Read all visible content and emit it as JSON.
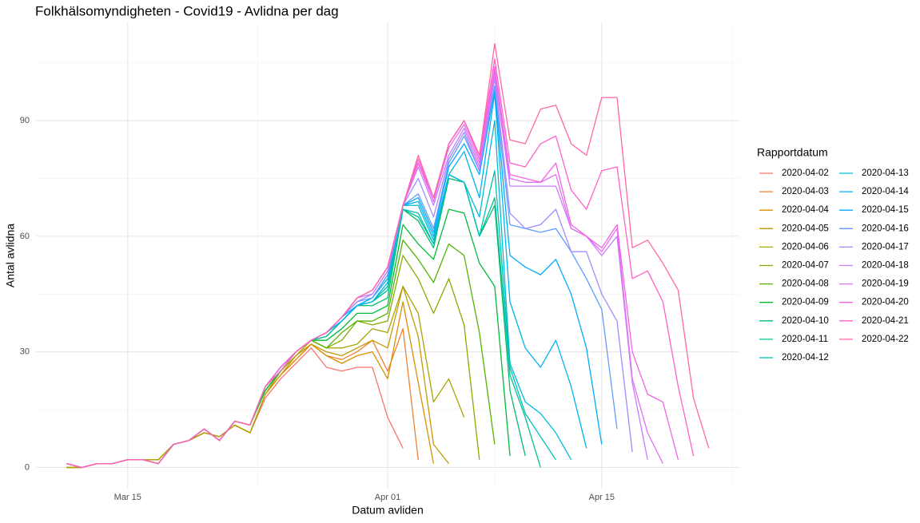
{
  "chart_data": {
    "type": "line",
    "title": "Folkhälsomyndigheten - Covid19 - Avlidna per dag",
    "x_label": "Datum avliden",
    "y_label": "Antal avlidna",
    "legend_title": "Rapportdatum",
    "x": [
      "2020-03-11",
      "2020-03-12",
      "2020-03-13",
      "2020-03-14",
      "2020-03-15",
      "2020-03-16",
      "2020-03-17",
      "2020-03-18",
      "2020-03-19",
      "2020-03-20",
      "2020-03-21",
      "2020-03-22",
      "2020-03-23",
      "2020-03-24",
      "2020-03-25",
      "2020-03-26",
      "2020-03-27",
      "2020-03-28",
      "2020-03-29",
      "2020-03-30",
      "2020-03-31",
      "2020-04-01",
      "2020-04-02",
      "2020-04-03",
      "2020-04-04",
      "2020-04-05",
      "2020-04-06",
      "2020-04-07",
      "2020-04-08",
      "2020-04-09",
      "2020-04-10",
      "2020-04-11",
      "2020-04-12",
      "2020-04-13",
      "2020-04-14",
      "2020-04-15",
      "2020-04-16",
      "2020-04-17",
      "2020-04-18",
      "2020-04-19",
      "2020-04-20",
      "2020-04-21",
      "2020-04-22"
    ],
    "xlim": [
      "2020-03-09",
      "2020-04-24"
    ],
    "xticks": [
      {
        "value": "2020-03-15",
        "label": "Mar 15"
      },
      {
        "value": "2020-04-01",
        "label": "Apr 01"
      },
      {
        "value": "2020-04-15",
        "label": "Apr 15"
      }
    ],
    "minor_xticks": [
      "2020-03-23T12:00",
      "2020-04-08T00:00",
      "2020-04-23T12:00"
    ],
    "ylim": [
      -5.5,
      115.5
    ],
    "yticks": [
      0,
      30,
      60,
      90
    ],
    "minor_yticks": [
      15,
      45,
      75,
      105
    ],
    "grid": true,
    "legend": "right",
    "series": [
      {
        "name": "2020-04-02",
        "color": "#F8766D",
        "values": [
          0,
          0,
          1,
          1,
          2,
          2,
          2,
          6,
          7,
          9,
          8,
          11,
          9,
          18,
          23,
          27,
          31,
          26,
          25,
          26,
          26,
          13,
          5,
          null,
          null,
          null,
          null,
          null,
          null,
          null,
          null,
          null,
          null,
          null,
          null,
          null,
          null,
          null,
          null,
          null,
          null,
          null,
          null
        ]
      },
      {
        "name": "2020-04-03",
        "color": "#EB8335",
        "values": [
          0,
          0,
          1,
          1,
          2,
          2,
          2,
          6,
          7,
          9,
          8,
          11,
          9,
          19,
          24,
          28,
          32,
          29,
          28,
          30,
          33,
          25,
          36,
          2,
          null,
          null,
          null,
          null,
          null,
          null,
          null,
          null,
          null,
          null,
          null,
          null,
          null,
          null,
          null,
          null,
          null,
          null,
          null
        ]
      },
      {
        "name": "2020-04-04",
        "color": "#DA8F00",
        "values": [
          0,
          0,
          1,
          1,
          2,
          2,
          2,
          6,
          7,
          9,
          8,
          11,
          9,
          19,
          24,
          28,
          32,
          29,
          27,
          29,
          30,
          23,
          43,
          22,
          1,
          null,
          null,
          null,
          null,
          null,
          null,
          null,
          null,
          null,
          null,
          null,
          null,
          null,
          null,
          null,
          null,
          null,
          null
        ]
      },
      {
        "name": "2020-04-05",
        "color": "#C49A00",
        "values": [
          0,
          0,
          1,
          1,
          2,
          2,
          2,
          6,
          7,
          9,
          8,
          11,
          9,
          19,
          24,
          29,
          32,
          30,
          29,
          31,
          33,
          31,
          47,
          34,
          6,
          1,
          null,
          null,
          null,
          null,
          null,
          null,
          null,
          null,
          null,
          null,
          null,
          null,
          null,
          null,
          null,
          null,
          null
        ]
      },
      {
        "name": "2020-04-06",
        "color": "#A9A400",
        "values": [
          0,
          0,
          1,
          1,
          2,
          2,
          2,
          6,
          7,
          9,
          8,
          11,
          9,
          19,
          25,
          29,
          33,
          31,
          31,
          32,
          36,
          35,
          47,
          40,
          17,
          23,
          13,
          null,
          null,
          null,
          null,
          null,
          null,
          null,
          null,
          null,
          null,
          null,
          null,
          null,
          null,
          null,
          null
        ]
      },
      {
        "name": "2020-04-07",
        "color": "#86AC00",
        "values": [
          1,
          0,
          1,
          1,
          2,
          2,
          1,
          6,
          7,
          10,
          7,
          12,
          11,
          20,
          25,
          30,
          33,
          31,
          33,
          38,
          37,
          38,
          55,
          49,
          40,
          49,
          37,
          2,
          null,
          null,
          null,
          null,
          null,
          null,
          null,
          null,
          null,
          null,
          null,
          null,
          null,
          null,
          null
        ]
      },
      {
        "name": "2020-04-08",
        "color": "#53B400",
        "values": [
          1,
          0,
          1,
          1,
          2,
          2,
          1,
          6,
          7,
          10,
          7,
          12,
          11,
          20,
          25,
          30,
          33,
          31,
          35,
          38,
          38,
          40,
          59,
          54,
          48,
          58,
          55,
          35,
          6,
          null,
          null,
          null,
          null,
          null,
          null,
          null,
          null,
          null,
          null,
          null,
          null,
          null,
          null
        ]
      },
      {
        "name": "2020-04-09",
        "color": "#00BA38",
        "values": [
          1,
          0,
          1,
          1,
          2,
          2,
          1,
          6,
          7,
          10,
          7,
          12,
          11,
          20,
          25,
          30,
          33,
          33,
          36,
          40,
          40,
          42,
          63,
          58,
          54,
          67,
          66,
          53,
          47,
          3,
          null,
          null,
          null,
          null,
          null,
          null,
          null,
          null,
          null,
          null,
          null,
          null,
          null
        ]
      },
      {
        "name": "2020-04-10",
        "color": "#00BE6C",
        "values": [
          1,
          0,
          1,
          1,
          2,
          2,
          1,
          6,
          7,
          10,
          7,
          12,
          11,
          21,
          25,
          30,
          33,
          34,
          38,
          42,
          42,
          44,
          67,
          64,
          57,
          75,
          74,
          60,
          68,
          20,
          3,
          null,
          null,
          null,
          null,
          null,
          null,
          null,
          null,
          null,
          null,
          null,
          null
        ]
      },
      {
        "name": "2020-04-11",
        "color": "#00C094",
        "values": [
          1,
          0,
          1,
          1,
          2,
          2,
          1,
          6,
          7,
          10,
          7,
          12,
          11,
          21,
          25,
          30,
          33,
          34,
          38,
          42,
          43,
          46,
          67,
          65,
          58,
          76,
          74,
          60,
          70,
          24,
          13,
          0,
          null,
          null,
          null,
          null,
          null,
          null,
          null,
          null,
          null,
          null,
          null
        ]
      },
      {
        "name": "2020-04-12",
        "color": "#00C0B8",
        "values": [
          1,
          0,
          1,
          1,
          2,
          2,
          1,
          6,
          7,
          10,
          7,
          12,
          11,
          21,
          26,
          30,
          33,
          35,
          38,
          42,
          43,
          47,
          67,
          66,
          58,
          76,
          74,
          60,
          77,
          26,
          14,
          8,
          2,
          null,
          null,
          null,
          null,
          null,
          null,
          null,
          null,
          null,
          null
        ]
      },
      {
        "name": "2020-04-13",
        "color": "#00BCD8",
        "values": [
          1,
          0,
          1,
          1,
          2,
          2,
          1,
          6,
          7,
          10,
          7,
          12,
          11,
          21,
          26,
          30,
          33,
          35,
          38,
          42,
          43,
          48,
          68,
          68,
          59,
          76,
          74,
          65,
          90,
          27,
          17,
          14,
          9,
          2,
          null,
          null,
          null,
          null,
          null,
          null,
          null,
          null,
          null
        ]
      },
      {
        "name": "2020-04-14",
        "color": "#00B4F0",
        "values": [
          1,
          0,
          1,
          1,
          2,
          2,
          1,
          6,
          7,
          10,
          7,
          12,
          11,
          21,
          26,
          30,
          33,
          35,
          38,
          42,
          44,
          49,
          68,
          69,
          60,
          76,
          82,
          70,
          97,
          43,
          31,
          26,
          33,
          21,
          5,
          null,
          null,
          null,
          null,
          null,
          null,
          null,
          null
        ]
      },
      {
        "name": "2020-04-15",
        "color": "#00A9FF",
        "values": [
          1,
          0,
          1,
          1,
          2,
          2,
          1,
          6,
          7,
          10,
          7,
          12,
          11,
          21,
          26,
          30,
          33,
          35,
          39,
          42,
          44,
          50,
          68,
          70,
          61,
          78,
          84,
          76,
          98,
          55,
          52,
          50,
          54,
          45,
          31,
          6,
          null,
          null,
          null,
          null,
          null,
          null,
          null
        ]
      },
      {
        "name": "2020-04-16",
        "color": "#619CFF",
        "values": [
          1,
          0,
          1,
          1,
          2,
          2,
          1,
          6,
          7,
          10,
          7,
          12,
          11,
          21,
          26,
          30,
          33,
          35,
          39,
          43,
          44,
          50,
          68,
          71,
          62,
          79,
          86,
          77,
          99,
          63,
          62,
          61,
          62,
          56,
          49,
          41,
          10,
          null,
          null,
          null,
          null,
          null,
          null
        ]
      },
      {
        "name": "2020-04-17",
        "color": "#9F8CFF",
        "values": [
          1,
          0,
          1,
          1,
          2,
          2,
          1,
          6,
          7,
          10,
          7,
          12,
          11,
          21,
          26,
          30,
          33,
          35,
          39,
          43,
          45,
          51,
          68,
          75,
          65,
          80,
          87,
          77,
          101,
          66,
          62,
          63,
          67,
          56,
          56,
          45,
          38,
          4,
          null,
          null,
          null,
          null,
          null
        ]
      },
      {
        "name": "2020-04-18",
        "color": "#C77CFF",
        "values": [
          1,
          0,
          1,
          1,
          2,
          2,
          1,
          6,
          7,
          10,
          7,
          12,
          11,
          21,
          26,
          30,
          33,
          35,
          39,
          44,
          45,
          51,
          68,
          78,
          68,
          81,
          88,
          78,
          102,
          73,
          73,
          73,
          73,
          62,
          60,
          55,
          60,
          22,
          2,
          null,
          null,
          null,
          null
        ]
      },
      {
        "name": "2020-04-19",
        "color": "#E36EF6",
        "values": [
          1,
          0,
          1,
          1,
          2,
          2,
          1,
          6,
          7,
          10,
          7,
          12,
          11,
          21,
          26,
          30,
          33,
          35,
          39,
          44,
          46,
          52,
          68,
          79,
          69,
          83,
          89,
          79,
          103,
          75,
          74,
          74,
          76,
          62,
          60,
          56,
          62,
          23,
          9,
          1,
          null,
          null,
          null
        ]
      },
      {
        "name": "2020-04-20",
        "color": "#F564E3",
        "values": [
          1,
          0,
          1,
          1,
          2,
          2,
          1,
          6,
          7,
          10,
          7,
          12,
          11,
          21,
          26,
          30,
          33,
          35,
          39,
          44,
          46,
          52,
          68,
          79,
          70,
          84,
          90,
          80,
          104,
          76,
          75,
          74,
          79,
          63,
          60,
          57,
          63,
          30,
          19,
          17,
          2,
          null,
          null
        ]
      },
      {
        "name": "2020-04-21",
        "color": "#FF61C9",
        "values": [
          1,
          0,
          1,
          1,
          2,
          2,
          1,
          6,
          7,
          10,
          7,
          12,
          11,
          21,
          26,
          30,
          33,
          35,
          39,
          44,
          46,
          52,
          68,
          80,
          70,
          84,
          90,
          81,
          106,
          79,
          78,
          84,
          86,
          72,
          67,
          77,
          78,
          49,
          51,
          43,
          21,
          3,
          null
        ]
      },
      {
        "name": "2020-04-22",
        "color": "#FF66A8",
        "values": [
          1,
          0,
          1,
          1,
          2,
          2,
          1,
          6,
          7,
          10,
          7,
          12,
          11,
          21,
          25,
          30,
          33,
          35,
          39,
          44,
          46,
          52,
          68,
          81,
          70,
          84,
          90,
          81,
          110,
          85,
          84,
          93,
          94,
          84,
          81,
          96,
          96,
          57,
          59,
          53,
          46,
          18,
          5
        ]
      }
    ]
  }
}
